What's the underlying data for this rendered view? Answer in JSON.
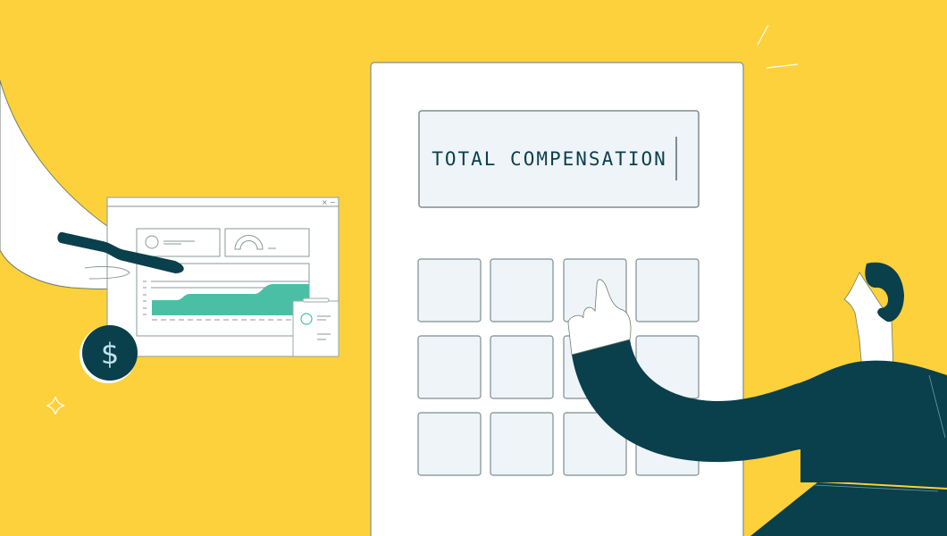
{
  "calculator": {
    "display_text": "TOTAL COMPENSATION",
    "key_rows": 3,
    "key_cols": 4
  },
  "coin": {
    "symbol": "$"
  },
  "dashboard": {
    "window_controls": [
      "×",
      "−"
    ]
  },
  "colors": {
    "background": "#FDD13B",
    "dark_teal": "#0A3F4C",
    "chart_teal": "#4BBFA5",
    "key_fill": "#EEF4F8",
    "outline": "#7E8E90"
  },
  "icons": [
    "dollar-coin-icon",
    "sparkle-icon",
    "gauge-icon",
    "pen-icon"
  ]
}
